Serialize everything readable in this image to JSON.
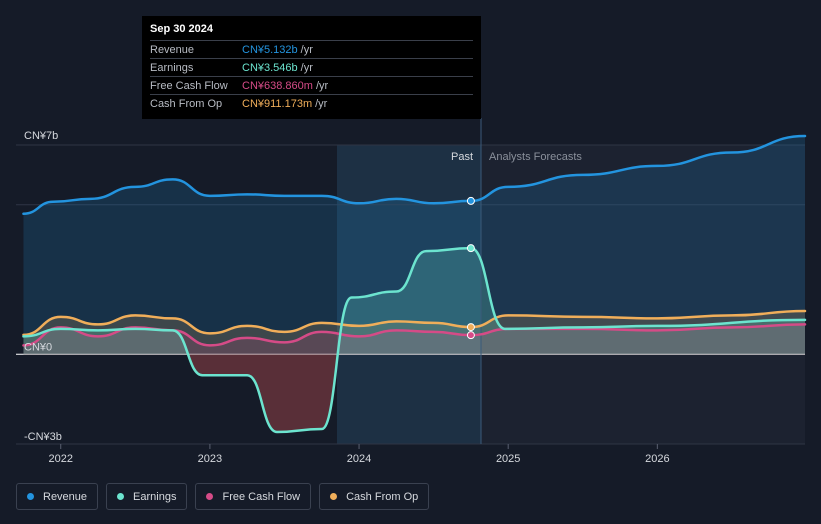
{
  "tooltip": {
    "date": "Sep 30 2024",
    "rows": [
      {
        "label": "Revenue",
        "value": "CN¥5.132b",
        "unit": "/yr",
        "color": "#2394df"
      },
      {
        "label": "Earnings",
        "value": "CN¥3.546b",
        "unit": "/yr",
        "color": "#6ce4cf"
      },
      {
        "label": "Free Cash Flow",
        "value": "CN¥638.860m",
        "unit": "/yr",
        "color": "#d54b87"
      },
      {
        "label": "Cash From Op",
        "value": "CN¥911.173m",
        "unit": "/yr",
        "color": "#f0ae5a"
      }
    ]
  },
  "regions": {
    "past": "Past",
    "forecast": "Analysts Forecasts"
  },
  "legend": [
    {
      "label": "Revenue",
      "color": "#2394df"
    },
    {
      "label": "Earnings",
      "color": "#6ce4cf"
    },
    {
      "label": "Free Cash Flow",
      "color": "#d54b87"
    },
    {
      "label": "Cash From Op",
      "color": "#f0ae5a"
    }
  ],
  "chart_data": {
    "type": "line",
    "y_tick_labels": [
      "CN¥7b",
      "CN¥0",
      "-CN¥3b"
    ],
    "ylim": [
      -3,
      7
    ],
    "xlim": [
      2021.7,
      2026.99
    ],
    "x_ticks": [
      2022,
      2023,
      2024,
      2025,
      2026
    ],
    "x_tick_labels": [
      "2022",
      "2023",
      "2024",
      "2025",
      "2026"
    ],
    "past_start": 2023.75,
    "today": 2024.75,
    "grid": true,
    "legend_position": "bottom",
    "series": [
      {
        "name": "Revenue",
        "color": "#2394df",
        "area": true,
        "points": [
          [
            2021.75,
            4.7
          ],
          [
            2021.95,
            5.1
          ],
          [
            2022.2,
            5.2
          ],
          [
            2022.5,
            5.6
          ],
          [
            2022.75,
            5.85
          ],
          [
            2023.0,
            5.3
          ],
          [
            2023.25,
            5.35
          ],
          [
            2023.5,
            5.3
          ],
          [
            2023.75,
            5.3
          ],
          [
            2024.0,
            5.05
          ],
          [
            2024.25,
            5.2
          ],
          [
            2024.5,
            5.05
          ],
          [
            2024.75,
            5.13
          ],
          [
            2025.0,
            5.6
          ],
          [
            2025.5,
            6.0
          ],
          [
            2026.0,
            6.3
          ],
          [
            2026.5,
            6.75
          ],
          [
            2026.99,
            7.3
          ]
        ]
      },
      {
        "name": "Earnings",
        "color": "#6ce4cf",
        "area": true,
        "points": [
          [
            2021.75,
            0.6
          ],
          [
            2022.0,
            0.85
          ],
          [
            2022.25,
            0.8
          ],
          [
            2022.5,
            0.85
          ],
          [
            2022.75,
            0.8
          ],
          [
            2022.95,
            -0.7
          ],
          [
            2023.25,
            -0.7
          ],
          [
            2023.45,
            -2.6
          ],
          [
            2023.75,
            -2.5
          ],
          [
            2023.95,
            1.9
          ],
          [
            2024.25,
            2.1
          ],
          [
            2024.45,
            3.45
          ],
          [
            2024.75,
            3.55
          ],
          [
            2024.98,
            0.85
          ],
          [
            2025.5,
            0.9
          ],
          [
            2026.0,
            0.95
          ],
          [
            2026.99,
            1.15
          ]
        ]
      },
      {
        "name": "Free Cash Flow",
        "color": "#d54b87",
        "area": true,
        "points": [
          [
            2021.75,
            0.3
          ],
          [
            2022.0,
            0.9
          ],
          [
            2022.25,
            0.6
          ],
          [
            2022.5,
            0.9
          ],
          [
            2022.75,
            0.8
          ],
          [
            2023.0,
            0.3
          ],
          [
            2023.25,
            0.55
          ],
          [
            2023.5,
            0.4
          ],
          [
            2023.75,
            0.75
          ],
          [
            2024.0,
            0.6
          ],
          [
            2024.25,
            0.8
          ],
          [
            2024.5,
            0.75
          ],
          [
            2024.75,
            0.64
          ],
          [
            2025.0,
            0.85
          ],
          [
            2025.5,
            0.85
          ],
          [
            2026.0,
            0.8
          ],
          [
            2026.5,
            0.9
          ],
          [
            2026.99,
            1.0
          ]
        ]
      },
      {
        "name": "Cash From Op",
        "color": "#f0ae5a",
        "area": true,
        "points": [
          [
            2021.75,
            0.65
          ],
          [
            2022.0,
            1.25
          ],
          [
            2022.25,
            1.0
          ],
          [
            2022.5,
            1.3
          ],
          [
            2022.75,
            1.2
          ],
          [
            2023.0,
            0.7
          ],
          [
            2023.25,
            0.95
          ],
          [
            2023.5,
            0.75
          ],
          [
            2023.75,
            1.05
          ],
          [
            2024.0,
            0.95
          ],
          [
            2024.25,
            1.1
          ],
          [
            2024.5,
            1.05
          ],
          [
            2024.75,
            0.91
          ],
          [
            2025.0,
            1.3
          ],
          [
            2025.5,
            1.25
          ],
          [
            2026.0,
            1.2
          ],
          [
            2026.5,
            1.3
          ],
          [
            2026.99,
            1.45
          ]
        ]
      }
    ]
  }
}
